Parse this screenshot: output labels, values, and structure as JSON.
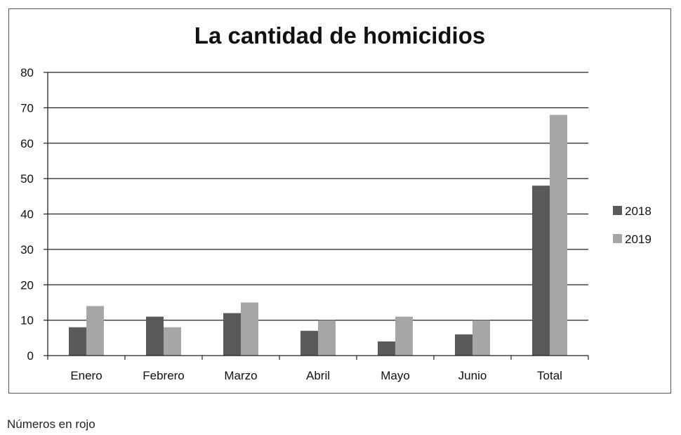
{
  "chart_data": {
    "type": "bar",
    "title": "La cantidad de homicidios",
    "categories": [
      "Enero",
      "Febrero",
      "Marzo",
      "Abril",
      "Mayo",
      "Junio",
      "Total"
    ],
    "series": [
      {
        "name": "2018",
        "values": [
          8,
          11,
          12,
          7,
          4,
          6,
          48
        ],
        "color": "#5a5a5a"
      },
      {
        "name": "2019",
        "values": [
          14,
          8,
          15,
          10,
          11,
          10,
          68
        ],
        "color": "#a6a6a6"
      }
    ],
    "ylim": [
      0,
      80
    ],
    "yticks": [
      0,
      10,
      20,
      30,
      40,
      50,
      60,
      70,
      80
    ],
    "grid": "horizontal",
    "legend_position": "right"
  },
  "footnote": "Números en rojo"
}
